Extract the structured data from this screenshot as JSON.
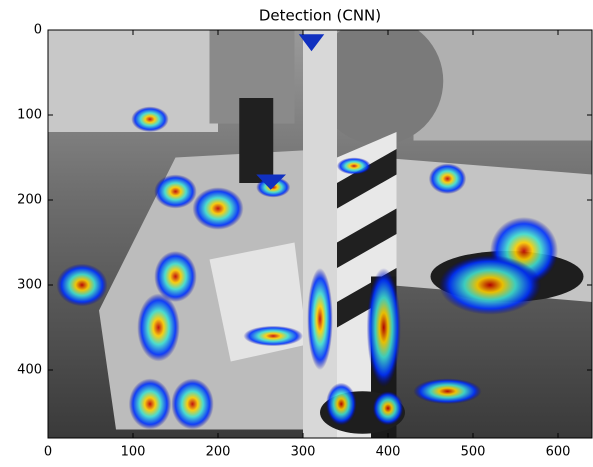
{
  "chart_data": {
    "type": "image",
    "title": "Detection (CNN)",
    "xlim": [
      0,
      640
    ],
    "ylim": [
      480,
      0
    ],
    "xticks": [
      0,
      100,
      200,
      300,
      400,
      500,
      600
    ],
    "yticks": [
      0,
      100,
      200,
      300,
      400
    ]
  }
}
